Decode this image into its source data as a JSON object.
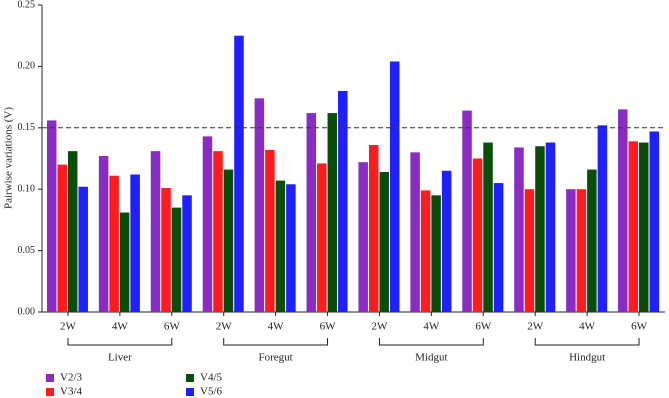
{
  "chart_data": {
    "type": "bar",
    "y_label": "Pairwise variations (V)",
    "categories": [
      "2W",
      "4W",
      "6W",
      "2W",
      "4W",
      "6W",
      "2W",
      "4W",
      "6W",
      "2W",
      "4W",
      "6W"
    ],
    "groups": [
      "Liver",
      "Foregut",
      "Midgut",
      "Hindgut"
    ],
    "series": [
      {
        "name": "V2/3",
        "color": "#8a2cc4",
        "values": [
          0.156,
          0.127,
          0.131,
          0.143,
          0.174,
          0.162,
          0.122,
          0.13,
          0.164,
          0.134,
          0.1,
          0.165
        ]
      },
      {
        "name": "V3/4",
        "color": "#ff1c1c",
        "values": [
          0.12,
          0.111,
          0.101,
          0.131,
          0.132,
          0.121,
          0.136,
          0.099,
          0.125,
          0.1,
          0.1,
          0.139
        ]
      },
      {
        "name": "V4/5",
        "color": "#0b4d0b",
        "values": [
          0.131,
          0.081,
          0.085,
          0.116,
          0.107,
          0.162,
          0.114,
          0.095,
          0.138,
          0.135,
          0.116,
          0.138
        ]
      },
      {
        "name": "V5/6",
        "color": "#1f1fff",
        "values": [
          0.102,
          0.112,
          0.095,
          0.225,
          0.104,
          0.18,
          0.204,
          0.115,
          0.105,
          0.138,
          0.152,
          0.147
        ]
      }
    ],
    "reference_line": 0.15,
    "ylim": [
      0,
      0.25
    ],
    "yticks": [
      {
        "value": 0,
        "label": "0.00"
      },
      {
        "value": 0.05,
        "label": "0.05"
      },
      {
        "value": 0.1,
        "label": "0.10"
      },
      {
        "value": 0.15,
        "label": "0.15"
      },
      {
        "value": 0.2,
        "label": "0.20"
      },
      {
        "value": 0.25,
        "label": "0.25"
      }
    ]
  }
}
